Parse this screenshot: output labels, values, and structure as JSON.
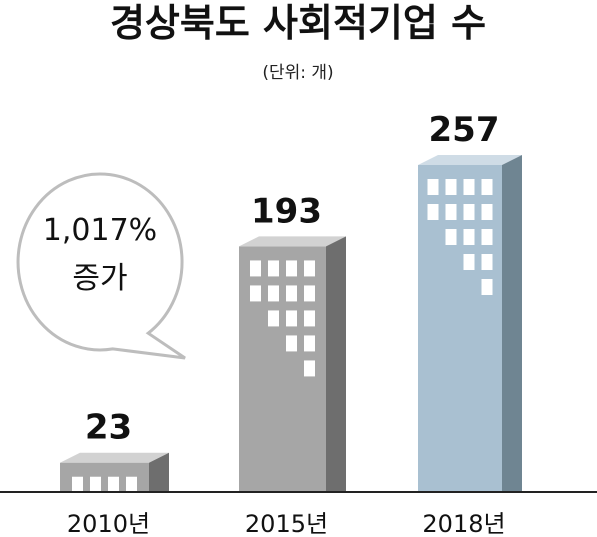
{
  "chart_data": {
    "type": "bar",
    "title": "경상북도 사회적기업 수",
    "unit_label": "(단위: 개)",
    "categories": [
      "2010년",
      "2015년",
      "2018년"
    ],
    "values": [
      23,
      193,
      257
    ],
    "value_labels": [
      "23",
      "193",
      "257"
    ],
    "ylim": [
      0,
      300
    ],
    "grid": false,
    "callout": {
      "lines": [
        "1,017%",
        "증가"
      ]
    }
  },
  "colors": {
    "grey_front": "#a6a6a6",
    "grey_side": "#6e6e6e",
    "grey_top": "#d2d2d2",
    "blue_front": "#a9c0d1",
    "blue_side": "#6f8592",
    "blue_top": "#cfdce6",
    "window": "#ffffff",
    "baseline": "#222222",
    "bubble_fill": "#ffffff",
    "bubble_stroke": "#bdbdbd"
  },
  "icons": {
    "bars": "building-icon",
    "callout": "speech-bubble-icon"
  }
}
